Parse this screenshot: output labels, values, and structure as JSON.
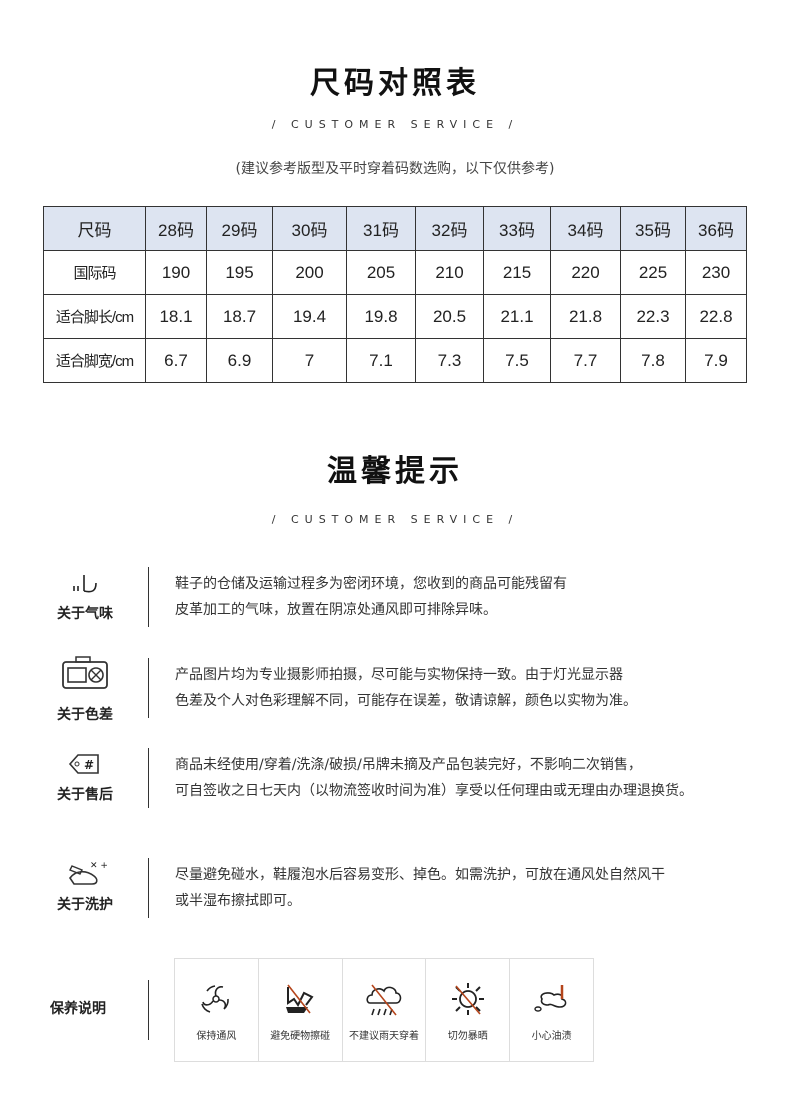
{
  "size_chart": {
    "title": "尺码对照表",
    "subtitle": "/ CUSTOMER SERVICE /",
    "note": "(建议参考版型及平时穿着码数选购，以下仅供参考)",
    "header": [
      "尺码",
      "28码",
      "29码",
      "30码",
      "31码",
      "32码",
      "33码",
      "34码",
      "35码",
      "36码"
    ],
    "rows": [
      [
        "国际码",
        "190",
        "195",
        "200",
        "205",
        "210",
        "215",
        "220",
        "225",
        "230"
      ],
      [
        "适合脚长/cm",
        "18.1",
        "18.7",
        "19.4",
        "19.8",
        "20.5",
        "21.1",
        "21.8",
        "22.3",
        "22.8"
      ],
      [
        "适合脚宽/cm",
        "6.7",
        "6.9",
        "7",
        "7.1",
        "7.3",
        "7.5",
        "7.7",
        "7.8",
        "7.9"
      ]
    ],
    "header_bg": "#dde4f1"
  },
  "tips": {
    "title": "温馨提示",
    "subtitle": "/ CUSTOMER SERVICE /",
    "items": [
      {
        "icon": "smell-icon",
        "label": "关于气味",
        "lines": [
          "鞋子的仓储及运输过程多为密闭环境，您收到的商品可能残留有",
          "皮革加工的气味，放置在阴凉处通风即可排除异味。"
        ]
      },
      {
        "icon": "camera-icon",
        "label": "关于色差",
        "lines": [
          "产品图片均为专业摄影师拍摄，尽可能与实物保持一致。由于灯光显示器",
          "色差及个人对色彩理解不同，可能存在误差，敬请谅解，颜色以实物为准。"
        ]
      },
      {
        "icon": "tag-icon",
        "label": "关于售后",
        "lines": [
          "商品未经使用/穿着/洗涤/破损/吊牌未摘及产品包装完好，不影响二次销售，",
          "可自签收之日七天内（以物流签收时间为准）享受以任何理由或无理由办理退换货。"
        ]
      },
      {
        "icon": "washing-icon",
        "label": "关于洗护",
        "lines": [
          "尽量避免碰水，鞋履泡水后容易变形、掉色。如需洗护，可放在通风处自然风干",
          "或半湿布擦拭即可。"
        ]
      }
    ]
  },
  "care": {
    "label": "保养说明",
    "items": [
      {
        "icon": "fan-icon",
        "label": "保持通风"
      },
      {
        "icon": "no-impact-icon",
        "label": "避免硬物擦碰"
      },
      {
        "icon": "no-rain-icon",
        "label": "不建议雨天穿着"
      },
      {
        "icon": "no-sun-icon",
        "label": "切勿暴晒"
      },
      {
        "icon": "oil-stain-icon",
        "label": "小心油渍"
      }
    ],
    "accent": "#b5451b"
  }
}
